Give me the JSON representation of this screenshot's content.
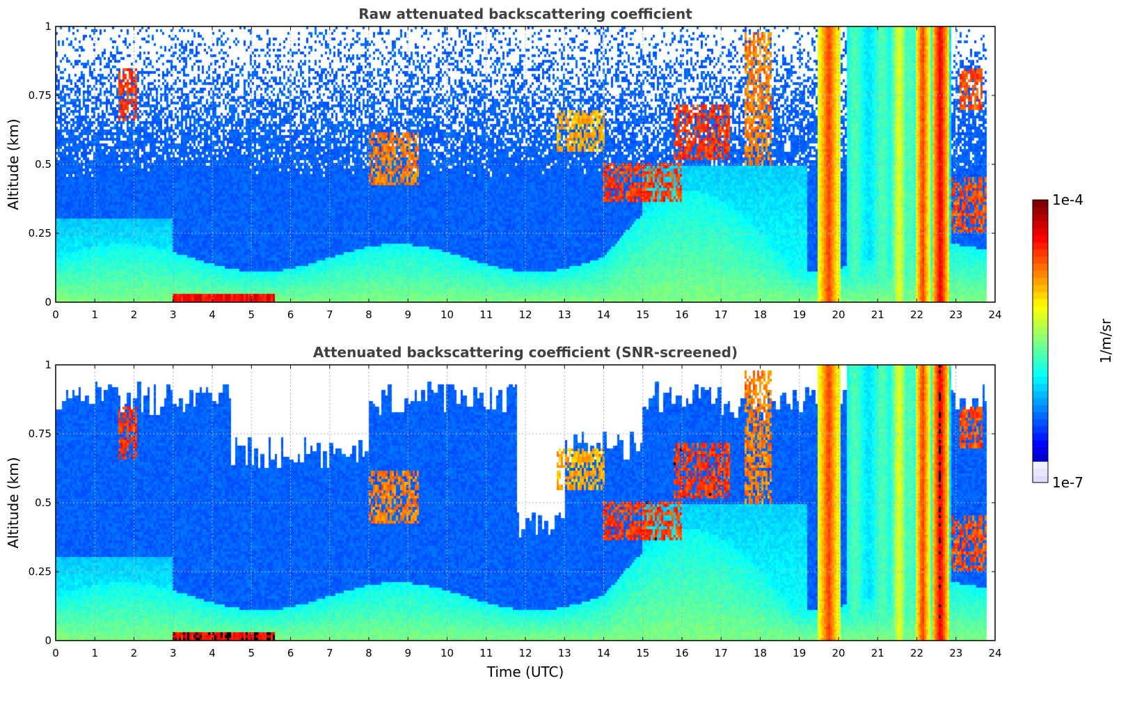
{
  "chart_data": {
    "type": "heatmap",
    "panels": [
      {
        "title": "Raw attenuated backscattering coefficient",
        "ylabel": "Altitude (km)",
        "xlabel": "",
        "screened": false
      },
      {
        "title": "Attenuated backscattering coefficient (SNR-screened)",
        "ylabel": "Altitude (km)",
        "xlabel": "Time (UTC)",
        "screened": true
      }
    ],
    "x": {
      "range": [
        0,
        24
      ],
      "ticks": [
        0,
        1,
        2,
        3,
        4,
        5,
        6,
        7,
        8,
        9,
        10,
        11,
        12,
        13,
        14,
        15,
        16,
        17,
        18,
        19,
        20,
        21,
        22,
        23,
        24
      ],
      "tick_labels": [
        "0",
        "1",
        "2",
        "3",
        "4",
        "5",
        "6",
        "7",
        "8",
        "9",
        "10",
        "11",
        "12",
        "13",
        "14",
        "15",
        "16",
        "17",
        "18",
        "19",
        "20",
        "21",
        "22",
        "23",
        "24"
      ]
    },
    "y": {
      "range": [
        0,
        1
      ],
      "ticks": [
        0,
        0.25,
        0.5,
        0.75,
        1
      ],
      "tick_labels": [
        "0",
        "0.25",
        "0.5",
        "0.75",
        "1"
      ]
    },
    "grid": true,
    "colorbar": {
      "label": "1/m/sr",
      "min_label": "1e-7",
      "max_label": "1e-4",
      "scale": "log",
      "colormap": "jet"
    },
    "features": {
      "cloud_layers": [
        {
          "t0": 1.6,
          "t1": 2.1,
          "h0": 0.66,
          "h1": 0.85,
          "level": 0.92
        },
        {
          "t0": 8.0,
          "t1": 9.3,
          "h0": 0.42,
          "h1": 0.62,
          "level": 0.85
        },
        {
          "t0": 12.8,
          "t1": 14.0,
          "h0": 0.55,
          "h1": 0.7,
          "level": 0.8
        },
        {
          "t0": 14.0,
          "t1": 16.0,
          "h0": 0.36,
          "h1": 0.5,
          "level": 0.92
        },
        {
          "t0": 15.8,
          "t1": 17.2,
          "h0": 0.52,
          "h1": 0.72,
          "level": 0.92
        },
        {
          "t0": 17.6,
          "t1": 18.3,
          "h0": 0.5,
          "h1": 0.98,
          "level": 0.85
        },
        {
          "t0": 22.9,
          "t1": 23.8,
          "h0": 0.25,
          "h1": 0.45,
          "level": 0.9
        },
        {
          "t0": 23.1,
          "t1": 23.7,
          "h0": 0.7,
          "h1": 0.85,
          "level": 0.9
        }
      ],
      "precip_columns": [
        {
          "t0": 19.45,
          "t1": 20.05,
          "level": 0.82
        },
        {
          "t0": 21.3,
          "t1": 21.8,
          "level": 0.62
        },
        {
          "t0": 21.95,
          "t1": 22.35,
          "level": 0.82
        },
        {
          "t0": 22.4,
          "t1": 22.8,
          "level": 0.9
        }
      ],
      "surface_layer": {
        "t0": 3.0,
        "t1": 5.6,
        "h1": 0.03,
        "level": 0.93
      },
      "data_end": 23.8
    }
  }
}
